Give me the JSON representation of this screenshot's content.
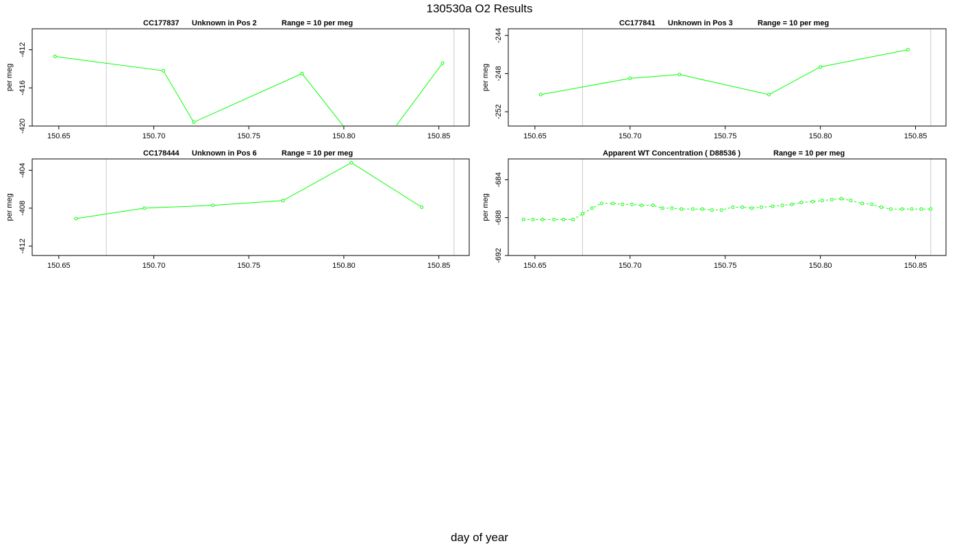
{
  "figure": {
    "title": "130530a  O2 Results",
    "xlabel": "day of year"
  },
  "colors": {
    "series": "#00ff00",
    "ref_line": "#c8c8c8",
    "axis": "#000000"
  },
  "chart_data": [
    {
      "type": "line",
      "title_parts": [
        "CC177837",
        "Unknown in Pos 2",
        "Range = 10 per meg"
      ],
      "ylabel": "per meg",
      "xlim": [
        150.636,
        150.866
      ],
      "ylim": [
        -420,
        -409.8
      ],
      "xticks": [
        "150.65",
        "150.70",
        "150.75",
        "150.80",
        "150.85"
      ],
      "yticks": [
        "-412",
        "-416",
        "-420"
      ],
      "ref_lines_x": [
        150.675,
        150.858
      ],
      "x": [
        150.648,
        150.705,
        150.721,
        150.778,
        150.814,
        150.852
      ],
      "y": [
        -412.7,
        -414.2,
        -419.6,
        -414.5,
        -423.6,
        -413.4
      ],
      "line_dashed": false
    },
    {
      "type": "line",
      "title_parts": [
        "CC177841",
        "Unknown in Pos 3",
        "Range = 10 per meg"
      ],
      "ylabel": "per meg",
      "xlim": [
        150.636,
        150.866
      ],
      "ylim": [
        -253.5,
        -243.3
      ],
      "xticks": [
        "150.65",
        "150.70",
        "150.75",
        "150.80",
        "150.85"
      ],
      "yticks": [
        "-244",
        "-248",
        "-252"
      ],
      "ref_lines_x": [
        150.675,
        150.858
      ],
      "x": [
        150.653,
        150.7,
        150.726,
        150.773,
        150.8,
        150.846
      ],
      "y": [
        -250.2,
        -248.5,
        -248.1,
        -250.2,
        -247.3,
        -245.5
      ],
      "line_dashed": false
    },
    {
      "type": "line",
      "title_parts": [
        "CC178444",
        "Unknown in Pos 6",
        "Range = 10 per meg"
      ],
      "ylabel": "per meg",
      "xlim": [
        150.636,
        150.866
      ],
      "ylim": [
        -413.0,
        -402.8
      ],
      "xticks": [
        "150.65",
        "150.70",
        "150.75",
        "150.80",
        "150.85"
      ],
      "yticks": [
        "-404",
        "-408",
        "-412"
      ],
      "ref_lines_x": [
        150.675,
        150.858
      ],
      "x": [
        150.659,
        150.695,
        150.731,
        150.768,
        150.804,
        150.841
      ],
      "y": [
        -409.1,
        -408.0,
        -407.7,
        -407.2,
        -403.2,
        -407.9
      ],
      "line_dashed": false
    },
    {
      "type": "line",
      "title_parts": [
        "Apparent WT Concentration ( D88536 )",
        "Range = 10 per meg"
      ],
      "ylabel": "per meg",
      "xlim": [
        150.636,
        150.866
      ],
      "ylim": [
        -692.0,
        -681.8
      ],
      "xticks": [
        "150.65",
        "150.70",
        "150.75",
        "150.80",
        "150.85"
      ],
      "yticks": [
        "-684",
        "-688",
        "-692"
      ],
      "ref_lines_x": [
        150.675,
        150.858
      ],
      "x": [
        150.644,
        150.649,
        150.654,
        150.66,
        150.665,
        150.67,
        150.675,
        150.68,
        150.685,
        150.691,
        150.696,
        150.701,
        150.706,
        150.712,
        150.717,
        150.722,
        150.727,
        150.733,
        150.738,
        150.743,
        150.748,
        150.754,
        150.759,
        150.764,
        150.769,
        150.775,
        150.78,
        150.785,
        150.79,
        150.796,
        150.801,
        150.806,
        150.811,
        150.816,
        150.822,
        150.827,
        150.832,
        150.837,
        150.843,
        150.848,
        150.853,
        150.858
      ],
      "y": [
        -688.2,
        -688.2,
        -688.2,
        -688.2,
        -688.2,
        -688.2,
        -687.6,
        -687.0,
        -686.5,
        -686.5,
        -686.6,
        -686.6,
        -686.7,
        -686.7,
        -687.0,
        -687.0,
        -687.1,
        -687.1,
        -687.1,
        -687.2,
        -687.2,
        -686.9,
        -686.9,
        -687.0,
        -686.9,
        -686.8,
        -686.7,
        -686.6,
        -686.4,
        -686.3,
        -686.2,
        -686.1,
        -686.0,
        -686.2,
        -686.5,
        -686.6,
        -686.9,
        -687.1,
        -687.1,
        -687.1,
        -687.1,
        -687.1
      ],
      "line_dashed": true
    }
  ]
}
